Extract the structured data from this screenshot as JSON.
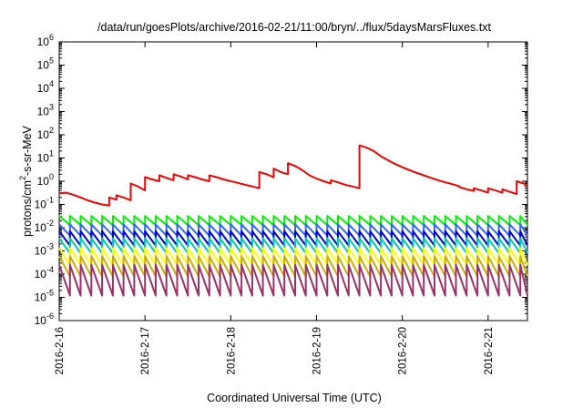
{
  "chart_data": {
    "type": "line",
    "title": "/data/run/goesPlots/archive/2016-02-21/11:00/bryn/../flux/5daysMarsFluxes.txt",
    "xlabel": "Coordinated Universal Time (UTC)",
    "ylabel": {
      "prefix": "protons/cm",
      "superscript": "2",
      "suffix": "-s-sr-MeV"
    },
    "y_scale": "log",
    "ylim": [
      1e-06,
      1000000.0
    ],
    "y_ticks": [
      {
        "base": "10",
        "exp": "-6"
      },
      {
        "base": "10",
        "exp": "-5"
      },
      {
        "base": "10",
        "exp": "-4"
      },
      {
        "base": "10",
        "exp": "-3"
      },
      {
        "base": "10",
        "exp": "-2"
      },
      {
        "base": "10",
        "exp": "-1"
      },
      {
        "base": "10",
        "exp": "0"
      },
      {
        "base": "10",
        "exp": "1"
      },
      {
        "base": "10",
        "exp": "2"
      },
      {
        "base": "10",
        "exp": "3"
      },
      {
        "base": "10",
        "exp": "4"
      },
      {
        "base": "10",
        "exp": "5"
      },
      {
        "base": "10",
        "exp": "6"
      }
    ],
    "x_ticks": [
      "2016-2-16",
      "2016-2-17",
      "2016-2-18",
      "2016-2-19",
      "2016-2-20",
      "2016-2-21"
    ],
    "xlim": [
      "2016-02-16 00:00",
      "2016-02-21 11:00"
    ],
    "grid": false,
    "legend": "none",
    "series": [
      {
        "color": "#ee0000",
        "points": [
          [
            "2016-02-16 00:00",
            0.3
          ],
          [
            "2016-02-16 02:00",
            0.32
          ],
          [
            "2016-02-16 04:00",
            0.26
          ],
          [
            "2016-02-16 06:00",
            0.2
          ],
          [
            "2016-02-16 08:00",
            0.15
          ],
          [
            "2016-02-16 10:00",
            0.12
          ],
          [
            "2016-02-16 12:00",
            0.1
          ],
          [
            "2016-02-16 14:00",
            0.09
          ],
          [
            "2016-02-16 14:00",
            0.2
          ],
          [
            "2016-02-16 16:00",
            0.16
          ],
          [
            "2016-02-16 16:00",
            0.25
          ],
          [
            "2016-02-16 18:00",
            0.2
          ],
          [
            "2016-02-16 20:00",
            0.15
          ],
          [
            "2016-02-16 20:00",
            0.8
          ],
          [
            "2016-02-16 22:00",
            0.6
          ],
          [
            "2016-02-17 00:00",
            0.4
          ],
          [
            "2016-02-17 00:00",
            1.5
          ],
          [
            "2016-02-17 02:00",
            1.2
          ],
          [
            "2016-02-17 04:00",
            1.0
          ],
          [
            "2016-02-17 04:00",
            1.8
          ],
          [
            "2016-02-17 06:00",
            1.4
          ],
          [
            "2016-02-17 08:00",
            1.1
          ],
          [
            "2016-02-17 08:00",
            2.0
          ],
          [
            "2016-02-17 10:00",
            1.6
          ],
          [
            "2016-02-17 12:00",
            1.2
          ],
          [
            "2016-02-17 12:00",
            1.8
          ],
          [
            "2016-02-17 14:00",
            1.5
          ],
          [
            "2016-02-17 16:00",
            1.2
          ],
          [
            "2016-02-17 18:00",
            1.0
          ],
          [
            "2016-02-17 18:00",
            1.8
          ],
          [
            "2016-02-17 20:00",
            1.5
          ],
          [
            "2016-02-17 22:00",
            1.2
          ],
          [
            "2016-02-18 00:00",
            1.0
          ],
          [
            "2016-02-18 02:00",
            0.85
          ],
          [
            "2016-02-18 04:00",
            0.7
          ],
          [
            "2016-02-18 06:00",
            0.6
          ],
          [
            "2016-02-18 08:00",
            0.5
          ],
          [
            "2016-02-18 08:00",
            2.5
          ],
          [
            "2016-02-18 10:00",
            2.0
          ],
          [
            "2016-02-18 12:00",
            1.5
          ],
          [
            "2016-02-18 12:00",
            3.5
          ],
          [
            "2016-02-18 14:00",
            2.5
          ],
          [
            "2016-02-18 16:00",
            2.0
          ],
          [
            "2016-02-18 16:00",
            6.0
          ],
          [
            "2016-02-18 18:00",
            4.5
          ],
          [
            "2016-02-18 20:00",
            3.0
          ],
          [
            "2016-02-18 22:00",
            1.8
          ],
          [
            "2016-02-19 00:00",
            1.3
          ],
          [
            "2016-02-19 02:00",
            1.0
          ],
          [
            "2016-02-19 04:00",
            0.8
          ],
          [
            "2016-02-19 04:00",
            1.1
          ],
          [
            "2016-02-19 06:00",
            0.9
          ],
          [
            "2016-02-19 08:00",
            0.7
          ],
          [
            "2016-02-19 10:00",
            0.6
          ],
          [
            "2016-02-19 12:00",
            0.5
          ],
          [
            "2016-02-19 12:00",
            35
          ],
          [
            "2016-02-19 14:00",
            28
          ],
          [
            "2016-02-19 16:00",
            20
          ],
          [
            "2016-02-19 18:00",
            12
          ],
          [
            "2016-02-19 20:00",
            8
          ],
          [
            "2016-02-19 22:00",
            5.5
          ],
          [
            "2016-02-20 00:00",
            4.0
          ],
          [
            "2016-02-20 02:00",
            3.0
          ],
          [
            "2016-02-20 04:00",
            2.3
          ],
          [
            "2016-02-20 06:00",
            1.8
          ],
          [
            "2016-02-20 08:00",
            1.4
          ],
          [
            "2016-02-20 10:00",
            1.1
          ],
          [
            "2016-02-20 12:00",
            0.9
          ],
          [
            "2016-02-20 14:00",
            0.75
          ],
          [
            "2016-02-20 16:00",
            0.6
          ],
          [
            "2016-02-20 16:00",
            0.55
          ],
          [
            "2016-02-20 18:00",
            0.45
          ],
          [
            "2016-02-20 20:00",
            0.38
          ],
          [
            "2016-02-20 20:00",
            0.5
          ],
          [
            "2016-02-20 22:00",
            0.4
          ],
          [
            "2016-02-21 00:00",
            0.32
          ],
          [
            "2016-02-21 00:00",
            0.5
          ],
          [
            "2016-02-21 02:00",
            0.4
          ],
          [
            "2016-02-21 04:00",
            0.32
          ],
          [
            "2016-02-21 04:00",
            0.45
          ],
          [
            "2016-02-21 06:00",
            0.35
          ],
          [
            "2016-02-21 08:00",
            0.28
          ],
          [
            "2016-02-21 08:00",
            1.0
          ],
          [
            "2016-02-21 10:00",
            0.8
          ],
          [
            "2016-02-21 11:00",
            0.6
          ]
        ]
      },
      {
        "color": "#00ee00",
        "generator": {
          "high": 0.032,
          "low": 0.013
        }
      },
      {
        "color": "#3366ff",
        "generator": {
          "high": 0.014,
          "low": 0.0045
        }
      },
      {
        "color": "#0000cc",
        "generator": {
          "high": 0.007,
          "low": 0.0017
        }
      },
      {
        "color": "#00c8b4",
        "generator": {
          "high": 0.0035,
          "low": 0.0008
        }
      },
      {
        "color": "#ffff00",
        "generator": {
          "high": 0.0013,
          "low": 0.00025
        }
      },
      {
        "color": "#ccaa00",
        "generator": {
          "high": 0.0006,
          "low": 8e-05
        }
      },
      {
        "color": "#993366",
        "generator": {
          "high": 0.00025,
          "low": 1.2e-05
        }
      }
    ]
  }
}
